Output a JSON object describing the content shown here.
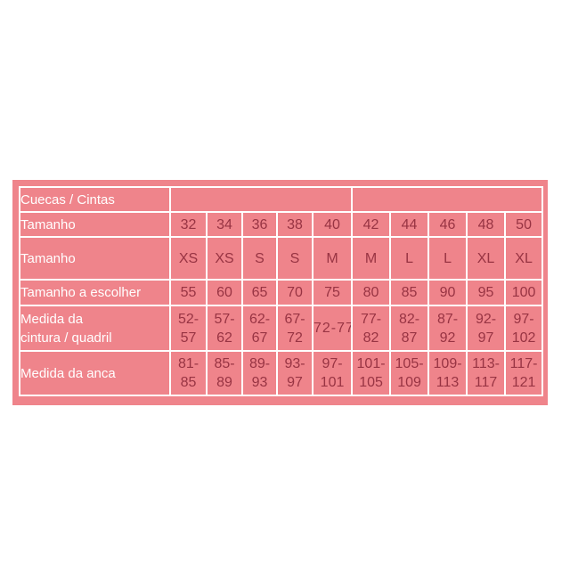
{
  "colors": {
    "panel_bg": "#EF848B",
    "grid_line": "#FFFFFF",
    "label_text": "#FFFFFF",
    "value_text": "#983443"
  },
  "size_chart": {
    "header": {
      "label": "Cuecas / Cintas",
      "group_left_colspan": 5,
      "group_right_colspan": 5
    },
    "rows": [
      {
        "name": "size-number",
        "label": "Tamanho",
        "values": [
          "32",
          "34",
          "36",
          "38",
          "40",
          "42",
          "44",
          "46",
          "48",
          "50"
        ]
      },
      {
        "name": "size-letter",
        "label": "Tamanho",
        "values": [
          "XS",
          "XS",
          "S",
          "S",
          "M",
          "M",
          "L",
          "L",
          "XL",
          "XL"
        ]
      },
      {
        "name": "size-to-choose",
        "label": "Tamanho a escolher",
        "values": [
          "55",
          "60",
          "65",
          "70",
          "75",
          "80",
          "85",
          "90",
          "95",
          "100"
        ]
      },
      {
        "name": "waist-hip-measurement",
        "label": "Medida da\ncintura / quadril",
        "values": [
          "52-\n57",
          "57-\n62",
          "62-\n67",
          "67-\n72",
          "72-77",
          "77-\n82",
          "82-\n87",
          "87-\n92",
          "92-\n97",
          "97-\n102"
        ]
      },
      {
        "name": "hip-measurement",
        "label": "Medida da anca",
        "values": [
          "81-\n85",
          "85-\n89",
          "89-\n93",
          "93-\n97",
          "97-\n101",
          "101-\n105",
          "105-\n109",
          "109-\n113",
          "113-\n117",
          "117-\n121"
        ]
      }
    ]
  }
}
